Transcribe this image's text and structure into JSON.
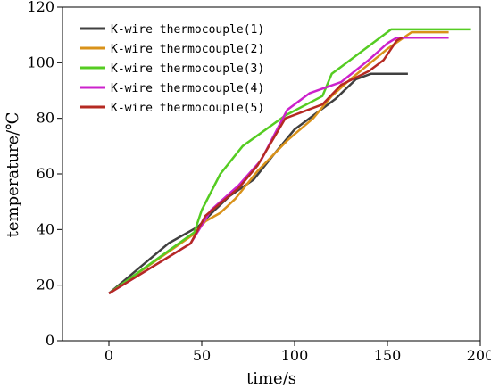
{
  "chart_data": {
    "type": "line",
    "title": "",
    "xlabel": "time/s",
    "ylabel": "temperature/℃",
    "xlim": [
      -25,
      200
    ],
    "ylim": [
      0,
      120
    ],
    "xticks": [
      0,
      50,
      100,
      150,
      200
    ],
    "yticks": [
      0,
      20,
      40,
      60,
      80,
      100,
      120
    ],
    "grid": false,
    "legend": "top-left",
    "series": [
      {
        "name": "K-wire thermocouple(1)",
        "color": "#404040",
        "points": [
          [
            0,
            17
          ],
          [
            32,
            35
          ],
          [
            48,
            41
          ],
          [
            57,
            47
          ],
          [
            65,
            52
          ],
          [
            78,
            58
          ],
          [
            90,
            68
          ],
          [
            100,
            76
          ],
          [
            122,
            87
          ],
          [
            133,
            94
          ],
          [
            141,
            96
          ],
          [
            161,
            96
          ]
        ]
      },
      {
        "name": "K-wire thermocouple(2)",
        "color": "#d9921a",
        "points": [
          [
            0,
            17
          ],
          [
            45,
            38
          ],
          [
            52,
            43
          ],
          [
            60,
            46
          ],
          [
            68,
            51
          ],
          [
            80,
            61
          ],
          [
            96,
            72
          ],
          [
            110,
            80
          ],
          [
            120,
            88
          ],
          [
            130,
            94
          ],
          [
            150,
            105
          ],
          [
            163,
            111
          ],
          [
            183,
            111
          ]
        ]
      },
      {
        "name": "K-wire thermocouple(3)",
        "color": "#55cc22",
        "points": [
          [
            0,
            17
          ],
          [
            46,
            39
          ],
          [
            50,
            47
          ],
          [
            60,
            60
          ],
          [
            72,
            70
          ],
          [
            95,
            81
          ],
          [
            115,
            88
          ],
          [
            120,
            96
          ],
          [
            140,
            106
          ],
          [
            152,
            112
          ],
          [
            195,
            112
          ]
        ]
      },
      {
        "name": "K-wire thermocouple(4)",
        "color": "#cc22cc",
        "points": [
          [
            0,
            17
          ],
          [
            44,
            35
          ],
          [
            55,
            47
          ],
          [
            70,
            56
          ],
          [
            82,
            65
          ],
          [
            96,
            83
          ],
          [
            108,
            89
          ],
          [
            125,
            93
          ],
          [
            140,
            101
          ],
          [
            150,
            107
          ],
          [
            155,
            109
          ],
          [
            183,
            109
          ]
        ]
      },
      {
        "name": "K-wire thermocouple(5)",
        "color": "#b52a22",
        "points": [
          [
            0,
            17
          ],
          [
            44,
            35
          ],
          [
            52,
            45
          ],
          [
            70,
            55
          ],
          [
            80,
            63
          ],
          [
            95,
            80
          ],
          [
            115,
            85
          ],
          [
            125,
            92
          ],
          [
            140,
            97
          ],
          [
            148,
            101
          ],
          [
            155,
            108
          ],
          [
            158,
            109
          ]
        ]
      }
    ]
  }
}
